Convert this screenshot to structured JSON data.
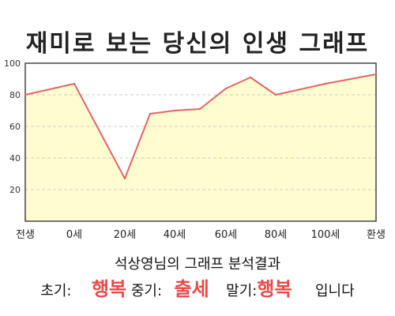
{
  "chart_data": {
    "type": "area",
    "title": "재미로 보는 당신의 인생 그래프",
    "x_tick_labels": [
      "전생",
      "0세",
      "20세",
      "40세",
      "60세",
      "80세",
      "100세",
      "환생"
    ],
    "points": [
      {
        "x": "전생",
        "y": 80
      },
      {
        "x": "0세",
        "y": 87
      },
      {
        "x": "20세",
        "y": 27
      },
      {
        "x": "30세",
        "y": 68
      },
      {
        "x": "40세",
        "y": 70
      },
      {
        "x": "50세",
        "y": 71
      },
      {
        "x": "60세",
        "y": 84
      },
      {
        "x": "70세",
        "y": 91
      },
      {
        "x": "80세",
        "y": 80
      },
      {
        "x": "100세",
        "y": 87
      },
      {
        "x": "환생",
        "y": 93
      }
    ],
    "ylim": [
      0,
      100
    ],
    "y_ticks": [
      20,
      40,
      60,
      80,
      100
    ],
    "grid": true,
    "line_color": "#e06666",
    "fill_color": "#fffdd0",
    "grid_color": "#cccccc"
  },
  "summary": {
    "caption": "석상영님의 그래프 분석결과",
    "early_label": "초기:",
    "early_value": "행복",
    "mid_label": "중기:",
    "mid_value": "출세",
    "late_label": "말기:",
    "late_value": "행복",
    "suffix": "입니다",
    "highlight_color": "#e84a4a"
  }
}
